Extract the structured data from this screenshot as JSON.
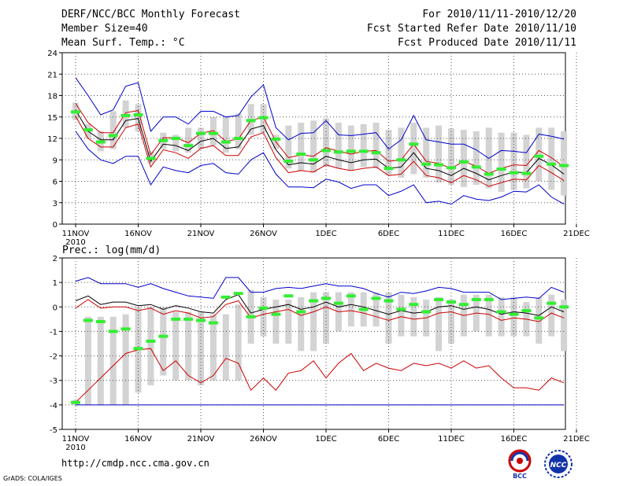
{
  "header": {
    "title": "DERF/NCC/BCC Monthly Forecast",
    "member": "Member Size=40",
    "variable": "Mean Surf. Temp.: °C",
    "period": "For 2010/11/11-2010/12/20",
    "started": "Fcst Started Refer Date 2010/11/10",
    "produced": "Fcst Produced Date 2010/11/11"
  },
  "footer": {
    "url": "http://cmdp.ncc.cma.gov.cn",
    "credit": "GrADS: COLA/IGES",
    "logo_bcc": "BCC",
    "logo_ncc": "NCC"
  },
  "colors": {
    "box": "#d3d3d3",
    "median": "#33ee33",
    "mean": "#000000",
    "envelope": "#0000cc",
    "inner": "#cc0000",
    "grid": "#555555"
  },
  "chart_data": [
    {
      "type": "box",
      "title": "Mean Surf. Temp.: °C",
      "x_tick_labels": [
        "11NOV",
        "16NOV",
        "21NOV",
        "26NOV",
        "1DEC",
        "6DEC",
        "11DEC",
        "16DEC",
        "21DEC"
      ],
      "x_sub_label": "2010",
      "x_tick_days": [
        0,
        5,
        10,
        15,
        20,
        25,
        30,
        35,
        40
      ],
      "ylim": [
        0,
        24
      ],
      "y_ticks": [
        0,
        3,
        6,
        9,
        12,
        15,
        18,
        21,
        24
      ],
      "days": [
        0,
        1,
        2,
        3,
        4,
        5,
        6,
        7,
        8,
        9,
        10,
        11,
        12,
        13,
        14,
        15,
        16,
        17,
        18,
        19,
        20,
        21,
        22,
        23,
        24,
        25,
        26,
        27,
        28,
        29,
        30,
        31,
        32,
        33,
        34,
        35,
        36,
        37,
        38,
        39
      ],
      "box_low": [
        14.6,
        12.0,
        10.2,
        10.5,
        13.5,
        13.0,
        8.5,
        10.5,
        10.2,
        10.0,
        10.5,
        11.0,
        10.0,
        10.5,
        12.5,
        12.8,
        10.5,
        7.8,
        7.5,
        7.2,
        8.0,
        7.8,
        7.5,
        8.0,
        7.8,
        6.8,
        6.5,
        7.0,
        6.5,
        5.8,
        5.5,
        5.2,
        5.5,
        5.0,
        4.5,
        4.8,
        5.0,
        6.0,
        4.8,
        4.0
      ],
      "box_high": [
        17.0,
        14.0,
        13.0,
        15.8,
        17.3,
        16.8,
        10.2,
        12.8,
        12.5,
        13.5,
        13.5,
        15.0,
        15.0,
        15.5,
        16.8,
        16.8,
        12.5,
        13.8,
        14.2,
        14.5,
        14.8,
        14.2,
        13.8,
        14.0,
        14.2,
        13.2,
        13.5,
        14.2,
        13.5,
        13.8,
        13.4,
        13.2,
        13.0,
        13.5,
        12.8,
        12.8,
        12.5,
        13.5,
        13.5,
        13.0
      ],
      "median": [
        15.7,
        13.2,
        11.5,
        12.4,
        15.2,
        15.3,
        9.2,
        11.7,
        12.0,
        11.0,
        12.7,
        12.7,
        11.5,
        12.0,
        14.5,
        14.9,
        11.9,
        8.8,
        9.8,
        9.0,
        10.3,
        10.1,
        10.2,
        10.2,
        10.0,
        7.8,
        9.0,
        11.2,
        8.4,
        8.3,
        7.9,
        8.7,
        8.0,
        7.0,
        7.7,
        7.2,
        7.1,
        9.5,
        8.4,
        8.2
      ],
      "mean": [
        16.0,
        13.0,
        11.8,
        11.8,
        14.5,
        14.8,
        8.8,
        11.2,
        11.0,
        10.3,
        11.6,
        12.0,
        10.6,
        10.8,
        13.3,
        13.8,
        10.4,
        8.3,
        8.6,
        8.4,
        9.5,
        9.0,
        8.6,
        9.0,
        9.1,
        7.8,
        8.0,
        10.0,
        7.8,
        7.5,
        6.8,
        7.8,
        7.1,
        6.2,
        6.8,
        7.3,
        7.2,
        9.2,
        8.3,
        7.0
      ],
      "inner_low": [
        15.1,
        12.0,
        10.8,
        10.8,
        13.5,
        14.0,
        8.0,
        10.4,
        10.0,
        9.2,
        10.6,
        11.0,
        9.6,
        9.6,
        12.2,
        12.8,
        9.3,
        7.2,
        7.5,
        7.3,
        8.3,
        7.8,
        7.5,
        7.8,
        8.0,
        6.8,
        7.0,
        8.8,
        6.8,
        6.5,
        5.8,
        6.8,
        6.2,
        5.3,
        5.8,
        6.3,
        6.2,
        8.2,
        7.2,
        6.1
      ],
      "inner_high": [
        16.9,
        14.2,
        12.8,
        12.8,
        15.6,
        15.9,
        9.7,
        12.1,
        12.1,
        11.4,
        12.7,
        13.1,
        11.6,
        11.9,
        14.5,
        15.0,
        11.5,
        9.3,
        9.7,
        9.5,
        10.7,
        10.2,
        9.8,
        10.2,
        10.3,
        8.8,
        9.0,
        11.2,
        8.8,
        8.5,
        7.8,
        8.8,
        8.1,
        7.1,
        7.8,
        8.3,
        8.2,
        10.3,
        9.3,
        8.0
      ],
      "envelope_low": [
        13.0,
        10.5,
        9.0,
        8.5,
        9.5,
        9.5,
        5.5,
        8.0,
        7.5,
        7.2,
        8.2,
        8.5,
        7.2,
        7.0,
        9.0,
        10.0,
        7.0,
        5.2,
        5.2,
        5.1,
        6.3,
        5.9,
        5.0,
        5.5,
        5.5,
        4.0,
        4.6,
        5.5,
        3.0,
        3.2,
        2.8,
        4.0,
        3.5,
        3.3,
        3.8,
        4.6,
        4.5,
        5.5,
        3.8,
        2.8
      ],
      "envelope_high": [
        20.5,
        18.0,
        15.3,
        16.0,
        19.3,
        19.8,
        13.0,
        15.0,
        15.0,
        14.0,
        15.8,
        15.8,
        15.0,
        15.2,
        17.8,
        19.5,
        13.5,
        11.8,
        12.7,
        12.8,
        14.5,
        12.5,
        12.4,
        12.6,
        12.8,
        10.5,
        11.8,
        15.2,
        11.8,
        11.5,
        11.2,
        11.2,
        10.4,
        9.2,
        10.3,
        10.2,
        10.0,
        12.6,
        12.3,
        11.9
      ]
    },
    {
      "type": "box",
      "title": "Prec.: log(mm/d)",
      "x_tick_labels": [
        "11NOV",
        "16NOV",
        "21NOV",
        "26NOV",
        "1DEC",
        "6DEC",
        "11DEC",
        "16DEC",
        "21DEC"
      ],
      "x_sub_label": "2010",
      "x_tick_days": [
        0,
        5,
        10,
        15,
        20,
        25,
        30,
        35,
        40
      ],
      "ylim": [
        -5,
        2
      ],
      "y_ticks": [
        -5,
        -4,
        -3,
        -2,
        -1,
        0,
        1,
        2
      ],
      "days": [
        0,
        1,
        2,
        3,
        4,
        5,
        6,
        7,
        8,
        9,
        10,
        11,
        12,
        13,
        14,
        15,
        16,
        17,
        18,
        19,
        20,
        21,
        22,
        23,
        24,
        25,
        26,
        27,
        28,
        29,
        30,
        31,
        32,
        33,
        34,
        35,
        36,
        37,
        38,
        39
      ],
      "box_low": [
        -4.0,
        -4.0,
        -4.0,
        -4.0,
        -4.0,
        -3.5,
        -3.2,
        -2.8,
        -3.0,
        -3.0,
        -3.2,
        -3.0,
        -3.0,
        -3.0,
        -1.5,
        -1.2,
        -1.5,
        -1.5,
        -1.8,
        -1.8,
        -1.5,
        -1.0,
        -0.8,
        -0.8,
        -0.8,
        -1.5,
        -1.2,
        -1.2,
        -1.2,
        -1.8,
        -1.5,
        -1.2,
        -1.0,
        -1.2,
        -1.2,
        -1.2,
        -1.2,
        -1.5,
        -1.2,
        -1.8
      ],
      "box_high": [
        -3.8,
        -0.4,
        -0.4,
        -0.4,
        -0.3,
        0.0,
        0.0,
        0.0,
        -0.2,
        -0.2,
        -0.2,
        -0.3,
        -0.3,
        0.1,
        0.7,
        0.4,
        0.3,
        0.3,
        0.4,
        0.6,
        0.6,
        0.6,
        0.6,
        0.6,
        0.6,
        0.6,
        0.5,
        0.4,
        0.3,
        0.4,
        0.3,
        0.5,
        0.5,
        0.5,
        0.4,
        0.4,
        0.2,
        0.4,
        0.5,
        0.3
      ],
      "median": [
        -3.9,
        -0.55,
        -0.6,
        -1.0,
        -0.9,
        -1.7,
        -1.4,
        -1.2,
        -0.5,
        -0.5,
        -0.55,
        -0.65,
        0.4,
        0.55,
        -0.4,
        -0.05,
        -0.3,
        0.45,
        -0.2,
        0.25,
        0.35,
        0.15,
        0.45,
        -0.1,
        0.35,
        0.25,
        -0.1,
        0.1,
        -0.2,
        0.3,
        0.2,
        0.1,
        0.3,
        0.3,
        -0.2,
        -0.3,
        -0.15,
        -0.45,
        0.15,
        0.0
      ],
      "mean": [
        0.25,
        0.45,
        0.1,
        0.2,
        0.2,
        0.05,
        0.1,
        -0.1,
        0.05,
        -0.05,
        -0.2,
        -0.25,
        0.3,
        0.5,
        -0.25,
        -0.1,
        0.0,
        0.1,
        -0.1,
        0.0,
        0.2,
        0.0,
        0.1,
        0.0,
        -0.15,
        -0.3,
        -0.15,
        -0.25,
        -0.2,
        0.0,
        0.05,
        -0.1,
        0.0,
        -0.1,
        -0.3,
        -0.2,
        -0.25,
        -0.35,
        0.0,
        -0.2
      ],
      "inner_low": [
        -3.9,
        -3.4,
        -2.9,
        -2.4,
        -1.9,
        -1.75,
        -1.7,
        -2.6,
        -2.2,
        -2.8,
        -3.1,
        -2.8,
        -2.1,
        -2.3,
        -3.4,
        -2.9,
        -3.4,
        -2.7,
        -2.6,
        -2.2,
        -2.9,
        -2.3,
        -1.9,
        -2.6,
        -2.3,
        -2.5,
        -2.6,
        -2.3,
        -2.4,
        -2.3,
        -2.5,
        -2.2,
        -2.5,
        -2.4,
        -2.9,
        -3.3,
        -3.3,
        -3.4,
        -2.9,
        -3.1
      ],
      "inner_high": [
        -0.05,
        0.3,
        -0.05,
        0.0,
        0.0,
        -0.15,
        -0.05,
        -0.3,
        -0.15,
        -0.25,
        -0.45,
        -0.4,
        0.1,
        0.25,
        -0.45,
        -0.3,
        -0.2,
        -0.1,
        -0.35,
        -0.2,
        0.0,
        -0.2,
        -0.15,
        -0.25,
        -0.4,
        -0.55,
        -0.4,
        -0.5,
        -0.45,
        -0.25,
        -0.2,
        -0.35,
        -0.25,
        -0.3,
        -0.55,
        -0.45,
        -0.5,
        -0.6,
        -0.25,
        -0.45
      ],
      "envelope_low": [
        -4.0,
        -4.0,
        -4.0,
        -4.0,
        -4.0,
        -4.0,
        -4.0,
        -4.0,
        -4.0,
        -4.0,
        -4.0,
        -4.0,
        -4.0,
        -4.0,
        -4.0,
        -4.0,
        -4.0,
        -4.0,
        -4.0,
        -4.0,
        -4.0,
        -4.0,
        -4.0,
        -4.0,
        -4.0,
        -4.0,
        -4.0,
        -4.0,
        -4.0,
        -4.0,
        -4.0,
        -4.0,
        -4.0,
        -4.0,
        -4.0,
        -4.0,
        -4.0,
        -4.0,
        -4.0,
        -4.0
      ],
      "envelope_high": [
        1.05,
        1.2,
        0.95,
        0.95,
        0.95,
        0.8,
        0.95,
        0.75,
        0.6,
        0.45,
        0.4,
        0.35,
        1.2,
        1.2,
        0.6,
        0.6,
        0.75,
        0.8,
        0.75,
        0.85,
        0.95,
        0.85,
        0.85,
        0.75,
        0.55,
        0.4,
        0.6,
        0.55,
        0.65,
        0.8,
        0.75,
        0.6,
        0.6,
        0.6,
        0.3,
        0.35,
        0.4,
        0.35,
        0.8,
        0.6
      ]
    }
  ]
}
